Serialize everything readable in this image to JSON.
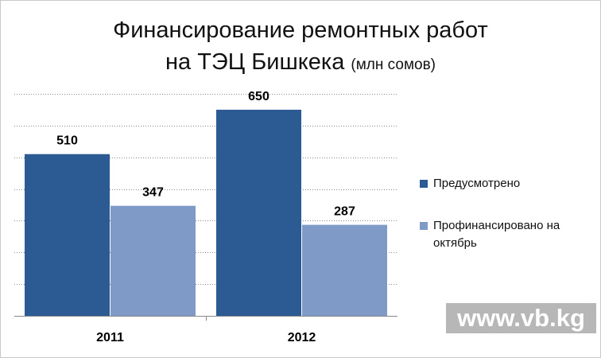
{
  "title": {
    "line1": "Финансирование ремонтных работ",
    "line2": "на ТЭЦ Бишкека",
    "unit": "(млн сомов)"
  },
  "legend": {
    "items": [
      {
        "label": "Предусмотрено",
        "color": "#2c5b94"
      },
      {
        "label": "Профинансировано на октябрь",
        "color": "#7f9ac7"
      }
    ]
  },
  "watermark": "www.vb.kg",
  "chart_data": {
    "type": "bar",
    "title": "Финансирование ремонтных работ на ТЭЦ Бишкека (млн сомов)",
    "categories": [
      "2011",
      "2012"
    ],
    "series": [
      {
        "name": "Предусмотрено",
        "values": [
          510,
          650
        ],
        "color": "#2c5b94"
      },
      {
        "name": "Профинансировано на октябрь",
        "values": [
          347,
          287
        ],
        "color": "#7f9ac7"
      }
    ],
    "ylim": [
      0,
      700
    ],
    "grid": true,
    "legend_position": "right",
    "data_labels": true
  }
}
